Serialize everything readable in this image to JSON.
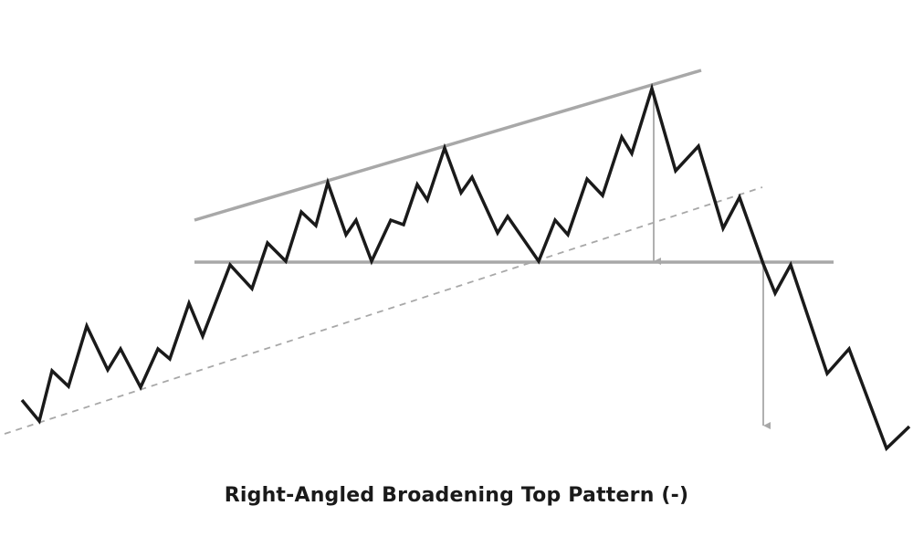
{
  "title": "Right-Angled Broadening Top Pattern (-)",
  "colors": {
    "price": "#1a1a1a",
    "guide": "#a8a8a8",
    "arrow": "#a8a8a8",
    "background": "#ffffff"
  }
}
